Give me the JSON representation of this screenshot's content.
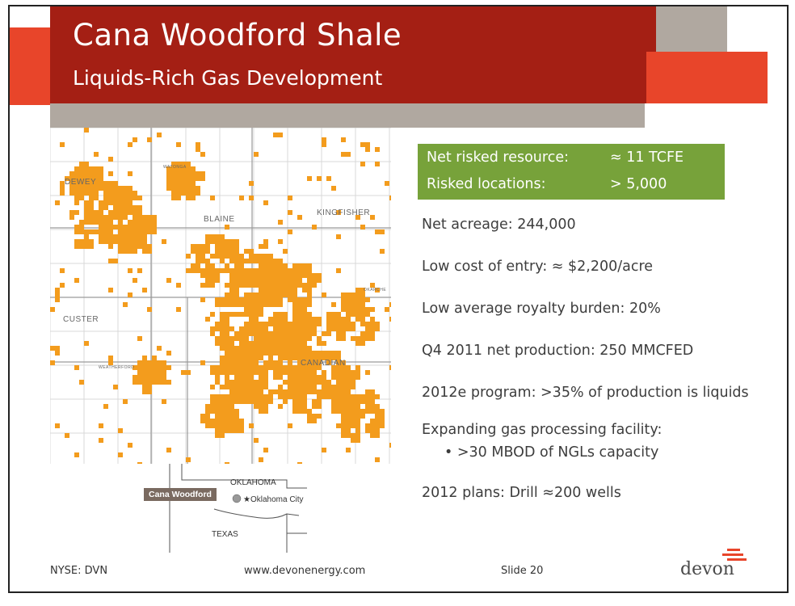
{
  "header": {
    "title": "Cana Woodford Shale",
    "subtitle": "Liquids-Rich Gas Development"
  },
  "map": {
    "county_labels": [
      "DEWEY",
      "BLAINE",
      "KINGFISHER",
      "CUSTER",
      "CANADIAN"
    ],
    "town_labels": [
      "WATONGA",
      "WEATHERFORD",
      "OKARCHE",
      "KINGFISHER"
    ],
    "acreage_color": "#f39c1d",
    "inset": {
      "state_label": "OKLAHOMA",
      "neighbor_label": "TEXAS",
      "city_label": "Oklahoma City",
      "play_tag": "Cana Woodford"
    }
  },
  "highlight_box": {
    "color": "#77a23a",
    "rows": [
      {
        "label": "Net risked resource:",
        "value": "≈ 11 TCFE"
      },
      {
        "label": "Risked locations:",
        "value": "> 5,000"
      }
    ]
  },
  "facts": [
    "Net acreage: 244,000",
    "Low cost of entry: ≈ $2,200/acre",
    "Low average royalty burden: 20%",
    "Q4 2011 net production: 250 MMCFED",
    "2012e program: >35% of production is liquids",
    "Expanding gas processing facility:",
    "• >30 MBOD of NGLs capacity",
    "2012 plans: Drill ≈200 wells"
  ],
  "footer": {
    "ticker": "NYSE: DVN",
    "website": "www.devonenergy.com",
    "slide": "Slide 20",
    "logo_text": "devon"
  },
  "colors": {
    "title_bar": "#a41f14",
    "accent_red": "#e8452a",
    "accent_grey": "#b0a8a0"
  }
}
